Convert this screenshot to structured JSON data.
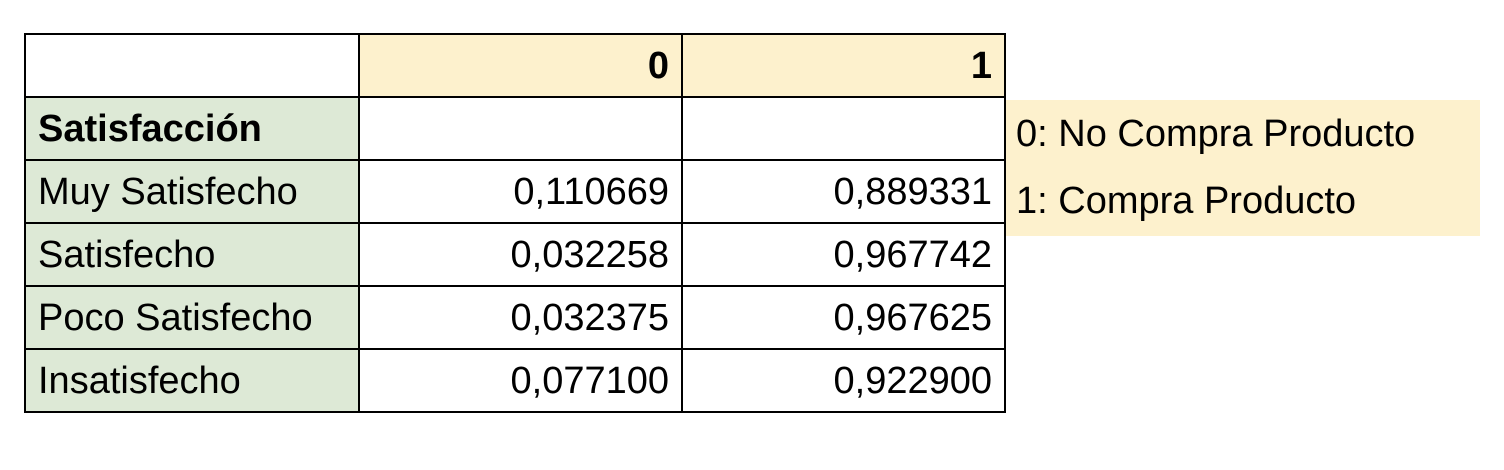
{
  "table": {
    "header": {
      "corner": "",
      "col0": "0",
      "col1": "1"
    },
    "section_label": "Satisfacción",
    "rows": [
      {
        "label": "Muy Satisfecho",
        "v0": "0,110669",
        "v1": "0,889331"
      },
      {
        "label": "Satisfecho",
        "v0": "0,032258",
        "v1": "0,967742"
      },
      {
        "label": "Poco Satisfecho",
        "v0": "0,032375",
        "v1": "0,967625"
      },
      {
        "label": "Insatisfecho",
        "v0": "0,077100",
        "v1": "0,922900"
      }
    ]
  },
  "legend": {
    "line0": "0: No Compra Producto",
    "line1": "1: Compra Producto"
  },
  "colors": {
    "header_fill": "#fdf1cd",
    "label_fill": "#dde9d6",
    "legend_fill": "#fdf1cd",
    "border": "#000000"
  }
}
